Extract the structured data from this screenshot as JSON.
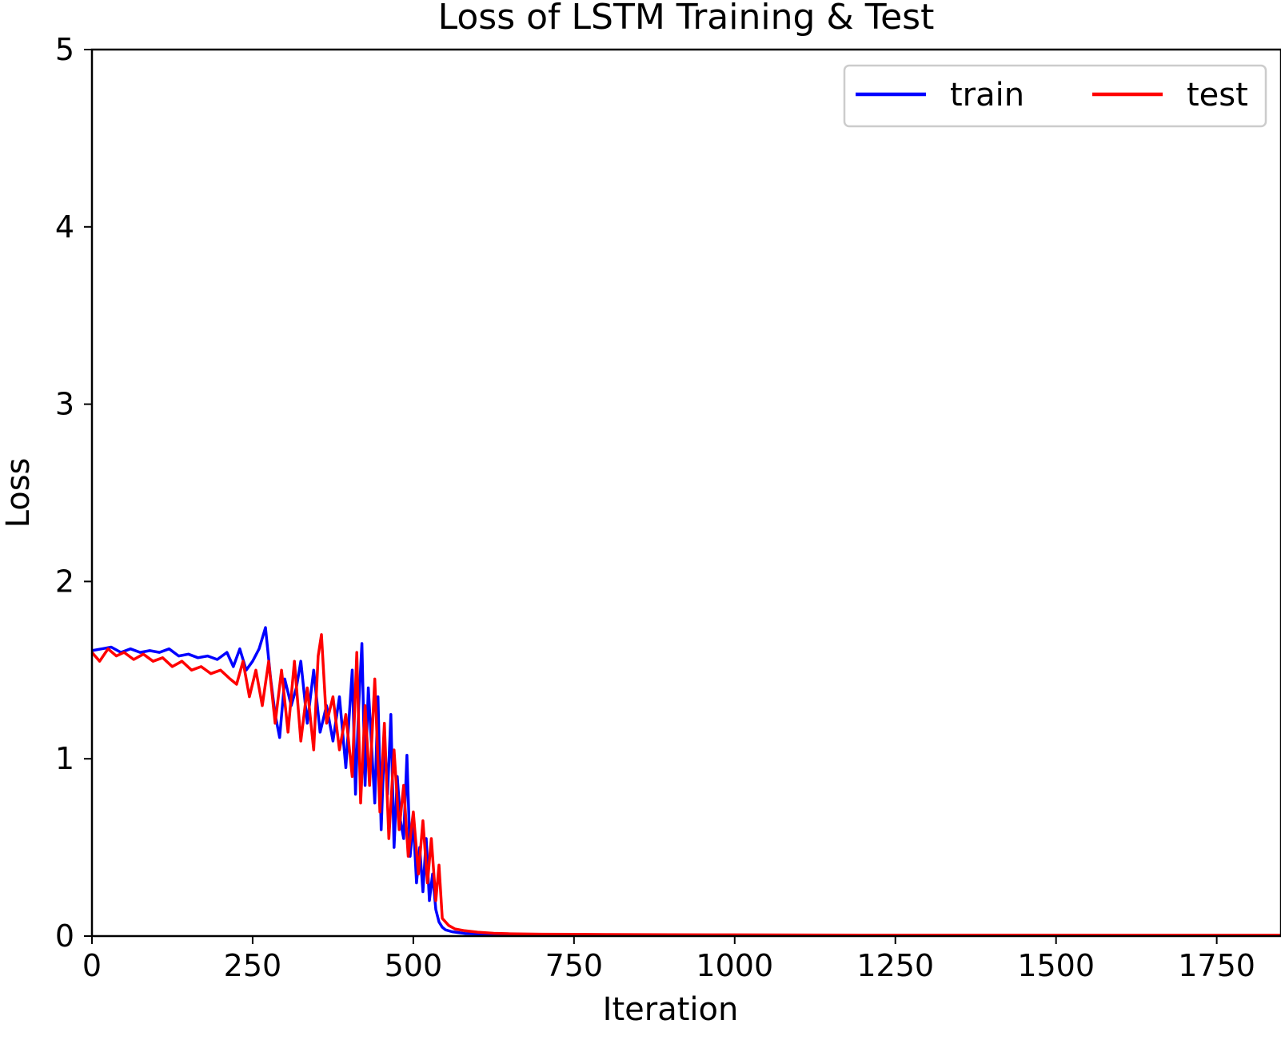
{
  "chart_data": {
    "type": "line",
    "title": "Loss of LSTM Training & Test",
    "xlabel": "Iteration",
    "ylabel": "Loss",
    "xlim": [
      0,
      1850
    ],
    "ylim": [
      0,
      5
    ],
    "xticks": [
      0,
      250,
      500,
      750,
      1000,
      1250,
      1500,
      1750
    ],
    "yticks": [
      0,
      1,
      2,
      3,
      4,
      5
    ],
    "grid": false,
    "legend_position": "top-right",
    "legend_columns": 2,
    "series": [
      {
        "name": "train",
        "color": "#0000ff",
        "x": [
          0,
          15,
          30,
          45,
          60,
          75,
          90,
          105,
          120,
          135,
          150,
          165,
          180,
          195,
          210,
          220,
          230,
          240,
          250,
          260,
          270,
          278,
          285,
          292,
          300,
          310,
          318,
          325,
          335,
          345,
          355,
          365,
          375,
          385,
          395,
          405,
          410,
          415,
          420,
          425,
          430,
          440,
          445,
          450,
          455,
          460,
          465,
          470,
          475,
          480,
          485,
          490,
          495,
          500,
          505,
          510,
          515,
          520,
          525,
          530,
          535,
          540,
          545,
          550,
          560,
          570,
          580,
          600,
          625,
          650,
          700,
          750,
          800,
          900,
          1000,
          1200,
          1400,
          1600,
          1850
        ],
        "y": [
          1.61,
          1.62,
          1.63,
          1.6,
          1.62,
          1.6,
          1.61,
          1.6,
          1.62,
          1.58,
          1.59,
          1.57,
          1.58,
          1.56,
          1.6,
          1.52,
          1.62,
          1.5,
          1.55,
          1.62,
          1.74,
          1.45,
          1.25,
          1.12,
          1.45,
          1.3,
          1.4,
          1.55,
          1.2,
          1.5,
          1.15,
          1.3,
          1.1,
          1.35,
          0.95,
          1.5,
          0.8,
          1.3,
          1.65,
          0.85,
          1.4,
          0.75,
          1.35,
          0.6,
          1.1,
          0.8,
          1.25,
          0.5,
          0.9,
          0.65,
          0.55,
          1.02,
          0.45,
          0.65,
          0.3,
          0.5,
          0.25,
          0.55,
          0.2,
          0.35,
          0.15,
          0.08,
          0.05,
          0.035,
          0.025,
          0.02,
          0.015,
          0.012,
          0.01,
          0.009,
          0.008,
          0.007,
          0.006,
          0.005,
          0.004,
          0.004,
          0.003,
          0.003,
          0.003
        ]
      },
      {
        "name": "test",
        "color": "#ff0000",
        "x": [
          0,
          12,
          25,
          38,
          50,
          65,
          80,
          95,
          110,
          125,
          140,
          155,
          170,
          185,
          200,
          215,
          225,
          235,
          245,
          255,
          265,
          275,
          285,
          295,
          305,
          315,
          325,
          335,
          345,
          352,
          357,
          365,
          375,
          385,
          395,
          405,
          412,
          418,
          425,
          432,
          440,
          448,
          455,
          462,
          470,
          478,
          485,
          492,
          500,
          508,
          515,
          522,
          528,
          535,
          540,
          545,
          555,
          565,
          580,
          600,
          625,
          650,
          700,
          750,
          800,
          900,
          1000,
          1200,
          1400,
          1600,
          1850
        ],
        "y": [
          1.6,
          1.55,
          1.62,
          1.58,
          1.6,
          1.56,
          1.59,
          1.55,
          1.57,
          1.52,
          1.55,
          1.5,
          1.52,
          1.48,
          1.5,
          1.45,
          1.42,
          1.55,
          1.35,
          1.5,
          1.3,
          1.55,
          1.2,
          1.5,
          1.15,
          1.55,
          1.1,
          1.4,
          1.05,
          1.58,
          1.7,
          1.2,
          1.35,
          1.05,
          1.25,
          0.9,
          1.6,
          0.75,
          1.3,
          0.85,
          1.45,
          0.7,
          1.2,
          0.55,
          1.05,
          0.6,
          0.85,
          0.45,
          0.7,
          0.35,
          0.65,
          0.3,
          0.55,
          0.2,
          0.4,
          0.1,
          0.06,
          0.04,
          0.03,
          0.022,
          0.016,
          0.013,
          0.011,
          0.01,
          0.009,
          0.008,
          0.007,
          0.006,
          0.006,
          0.005,
          0.005
        ]
      }
    ]
  }
}
